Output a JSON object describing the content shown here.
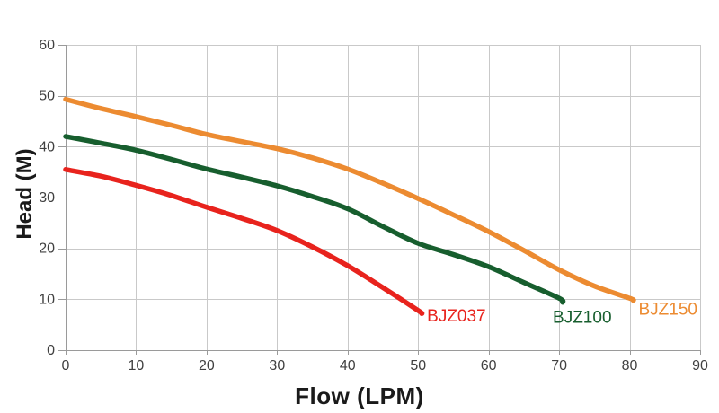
{
  "chart_data": {
    "type": "line",
    "title": "",
    "xlabel": "Flow (LPM)",
    "ylabel": "Head (M)",
    "xlim": [
      0,
      90
    ],
    "ylim": [
      0,
      60
    ],
    "x_ticks": [
      0,
      10,
      20,
      30,
      40,
      50,
      60,
      70,
      80,
      90
    ],
    "y_ticks": [
      0,
      10,
      20,
      30,
      40,
      50,
      60
    ],
    "grid": "on",
    "legend_position": "end-of-line-labels",
    "series": [
      {
        "name": "BJZ037",
        "color": "#e8231d",
        "label_offset": {
          "dx": 6,
          "dy": 9
        },
        "points": [
          [
            0,
            35.5
          ],
          [
            5,
            34.2
          ],
          [
            10,
            32.4
          ],
          [
            15,
            30.4
          ],
          [
            20,
            28.1
          ],
          [
            25,
            25.9
          ],
          [
            30,
            23.5
          ],
          [
            35,
            20.3
          ],
          [
            40,
            16.6
          ],
          [
            45,
            12.3
          ],
          [
            50,
            7.8
          ],
          [
            50.5,
            7.2
          ]
        ]
      },
      {
        "name": "BJZ100",
        "color": "#175e2e",
        "label_offset": {
          "dx": -11,
          "dy": 23
        },
        "points": [
          [
            0,
            42.0
          ],
          [
            5,
            40.7
          ],
          [
            10,
            39.3
          ],
          [
            15,
            37.5
          ],
          [
            20,
            35.6
          ],
          [
            25,
            34.0
          ],
          [
            30,
            32.3
          ],
          [
            35,
            30.2
          ],
          [
            40,
            27.8
          ],
          [
            45,
            24.3
          ],
          [
            50,
            21.0
          ],
          [
            55,
            18.8
          ],
          [
            60,
            16.4
          ],
          [
            65,
            13.3
          ],
          [
            70,
            10.2
          ],
          [
            70.5,
            9.4
          ]
        ]
      },
      {
        "name": "BJZ150",
        "color": "#ec8b31",
        "label_offset": {
          "dx": 6,
          "dy": 16
        },
        "points": [
          [
            0,
            49.3
          ],
          [
            5,
            47.5
          ],
          [
            10,
            45.9
          ],
          [
            15,
            44.2
          ],
          [
            20,
            42.4
          ],
          [
            25,
            41.0
          ],
          [
            30,
            39.6
          ],
          [
            35,
            37.8
          ],
          [
            40,
            35.6
          ],
          [
            45,
            32.8
          ],
          [
            50,
            29.8
          ],
          [
            55,
            26.6
          ],
          [
            60,
            23.3
          ],
          [
            65,
            19.6
          ],
          [
            70,
            15.8
          ],
          [
            75,
            12.6
          ],
          [
            80,
            10.2
          ],
          [
            80.5,
            9.8
          ]
        ]
      }
    ]
  },
  "style": {
    "background": "#ffffff",
    "grid_color": "#c9c9c9",
    "axis_color": "#9a9a9a",
    "tick_text_color": "#404040",
    "axis_title_color": "#1a1a1a"
  }
}
